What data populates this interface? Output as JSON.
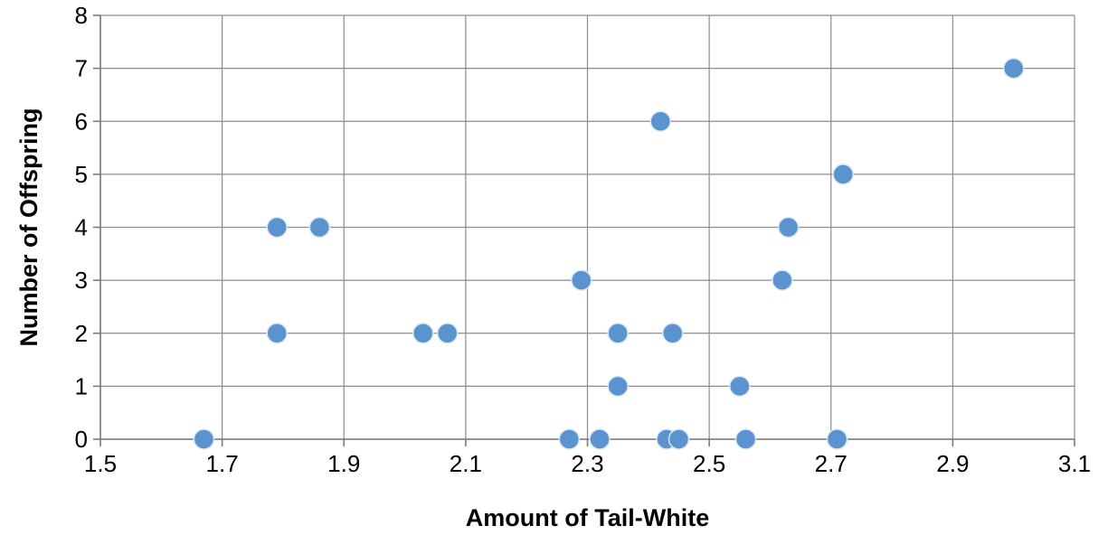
{
  "chart_data": {
    "type": "scatter",
    "xlabel": "Amount of Tail-White",
    "ylabel": "Number of Offspring",
    "xlim": [
      1.5,
      3.1
    ],
    "ylim": [
      0,
      8
    ],
    "x_ticks": [
      1.5,
      1.7,
      1.9,
      2.1,
      2.3,
      2.5,
      2.7,
      2.9,
      3.1
    ],
    "x_tick_labels": [
      "1.5",
      "1.7",
      "1.9",
      "2.1",
      "2.3",
      "2.5",
      "2.7",
      "2.9",
      "3.1"
    ],
    "y_ticks": [
      0,
      1,
      2,
      3,
      4,
      5,
      6,
      7,
      8
    ],
    "y_tick_labels": [
      "0",
      "1",
      "2",
      "3",
      "4",
      "5",
      "6",
      "7",
      "8"
    ],
    "grid": true,
    "legend": "none",
    "marker_color": "#5b93cf",
    "points": [
      {
        "x": 1.67,
        "y": 0
      },
      {
        "x": 1.79,
        "y": 4
      },
      {
        "x": 1.86,
        "y": 4
      },
      {
        "x": 1.79,
        "y": 2
      },
      {
        "x": 2.03,
        "y": 2
      },
      {
        "x": 2.07,
        "y": 2
      },
      {
        "x": 2.27,
        "y": 0
      },
      {
        "x": 2.29,
        "y": 3
      },
      {
        "x": 2.32,
        "y": 0
      },
      {
        "x": 2.35,
        "y": 2
      },
      {
        "x": 2.35,
        "y": 1
      },
      {
        "x": 2.42,
        "y": 6
      },
      {
        "x": 2.43,
        "y": 0
      },
      {
        "x": 2.44,
        "y": 2
      },
      {
        "x": 2.45,
        "y": 0
      },
      {
        "x": 2.55,
        "y": 1
      },
      {
        "x": 2.56,
        "y": 0
      },
      {
        "x": 2.62,
        "y": 3
      },
      {
        "x": 2.63,
        "y": 4
      },
      {
        "x": 2.71,
        "y": 0
      },
      {
        "x": 2.72,
        "y": 5
      },
      {
        "x": 3.0,
        "y": 7
      }
    ]
  }
}
